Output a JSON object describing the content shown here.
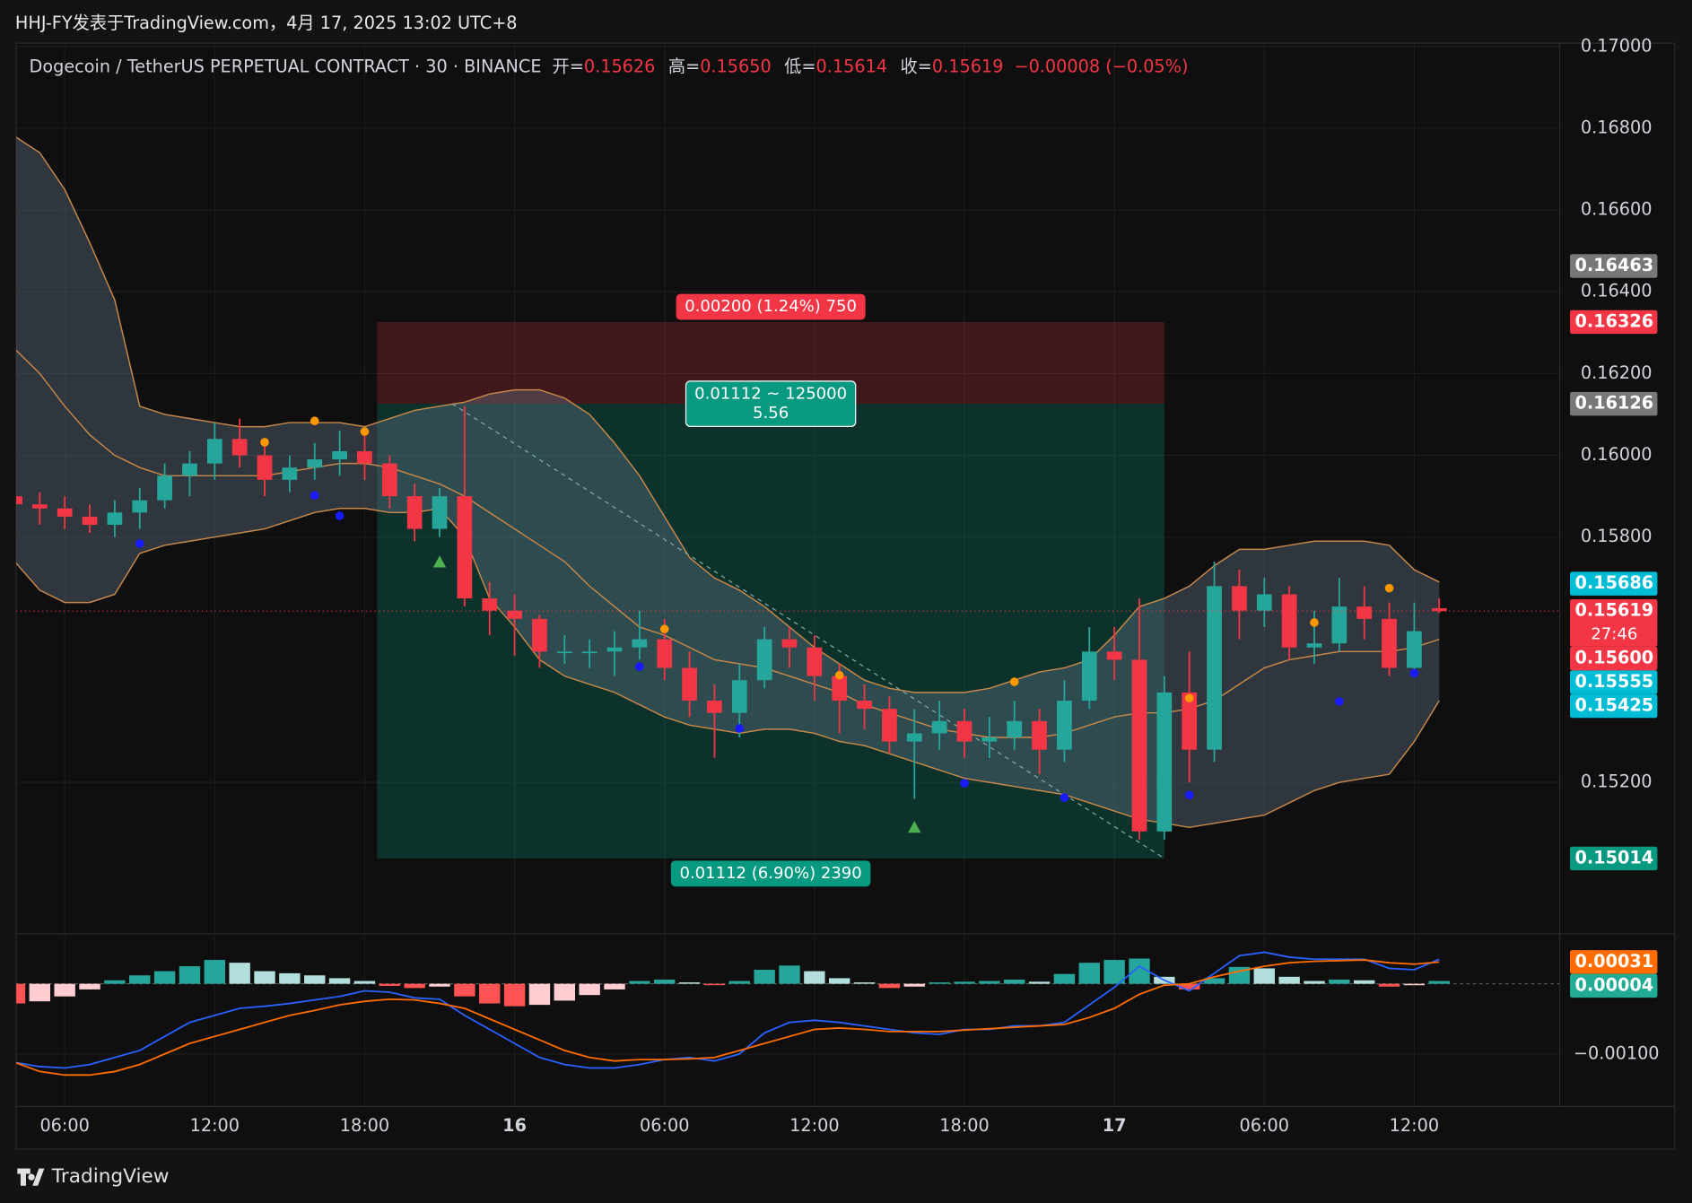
{
  "header": {
    "title": "HHJ-FY发表于TradingView.com，4月 17, 2025 13:02 UTC+8"
  },
  "footer": {
    "brand": "TradingView"
  },
  "chart_data": {
    "type": "candlestick",
    "legend": {
      "symbol": "Dogecoin / TetherUS PERPETUAL CONTRACT · 30 · BINANCE",
      "fields": [
        {
          "label": "开=",
          "value": "0.15626"
        },
        {
          "label": "高=",
          "value": "0.15650"
        },
        {
          "label": "低=",
          "value": "0.15614"
        },
        {
          "label": "收=",
          "value": "0.15619"
        }
      ],
      "change": "−0.00008 (−0.05%)"
    },
    "up_color": "#26a69a",
    "down_color": "#f23645",
    "xlim": [
      0.06,
      61.8
    ],
    "xticks": [
      {
        "value": 2,
        "label": "06:00"
      },
      {
        "value": 8,
        "label": "12:00"
      },
      {
        "value": 14,
        "label": "18:00"
      },
      {
        "value": 20,
        "label": "16"
      },
      {
        "value": 26,
        "label": "06:00"
      },
      {
        "value": 32,
        "label": "12:00"
      },
      {
        "value": 38,
        "label": "18:00"
      },
      {
        "value": 44,
        "label": "17"
      },
      {
        "value": 50,
        "label": "06:00"
      },
      {
        "value": 56,
        "label": "12:00"
      }
    ],
    "ylim": [
      0.14831,
      0.17008
    ],
    "yticks": [
      {
        "value": 0.17,
        "label": "0.17000"
      },
      {
        "value": 0.168,
        "label": "0.16800"
      },
      {
        "value": 0.166,
        "label": "0.16600"
      },
      {
        "value": 0.164,
        "label": "0.16400"
      },
      {
        "value": 0.162,
        "label": "0.16200"
      },
      {
        "value": 0.16,
        "label": "0.16000"
      },
      {
        "value": 0.158,
        "label": "0.15800"
      },
      {
        "value": 0.152,
        "label": "0.15200"
      }
    ],
    "grid": true,
    "candles": [
      [
        0.159,
        0.1593,
        0.1584,
        0.1588
      ],
      [
        0.1588,
        0.1591,
        0.1583,
        0.1587
      ],
      [
        0.1587,
        0.159,
        0.1582,
        0.1585
      ],
      [
        0.1585,
        0.1588,
        0.1581,
        0.1583
      ],
      [
        0.1583,
        0.1589,
        0.158,
        0.1586
      ],
      [
        0.1586,
        0.1592,
        0.1582,
        0.1589
      ],
      [
        0.1589,
        0.1598,
        0.1587,
        0.1595
      ],
      [
        0.1595,
        0.1601,
        0.159,
        0.1598
      ],
      [
        0.1598,
        0.1608,
        0.1594,
        0.1604
      ],
      [
        0.1604,
        0.1609,
        0.1597,
        0.16
      ],
      [
        0.16,
        0.1603,
        0.159,
        0.1594
      ],
      [
        0.1594,
        0.16,
        0.1591,
        0.1597
      ],
      [
        0.1597,
        0.1603,
        0.1594,
        0.1599
      ],
      [
        0.1599,
        0.1606,
        0.1595,
        0.1601
      ],
      [
        0.1601,
        0.1606,
        0.1594,
        0.1598
      ],
      [
        0.1598,
        0.16,
        0.1587,
        0.159
      ],
      [
        0.159,
        0.1593,
        0.1579,
        0.1582
      ],
      [
        0.1582,
        0.1592,
        0.158,
        0.159
      ],
      [
        0.159,
        0.1612,
        0.1563,
        0.1565
      ],
      [
        0.1565,
        0.1569,
        0.1556,
        0.1562
      ],
      [
        0.1562,
        0.1566,
        0.1551,
        0.156
      ],
      [
        0.156,
        0.1561,
        0.1548,
        0.1552
      ],
      [
        0.1552,
        0.1556,
        0.1549,
        0.1552
      ],
      [
        0.1552,
        0.1555,
        0.1548,
        0.1552
      ],
      [
        0.1552,
        0.1557,
        0.1546,
        0.1553
      ],
      [
        0.1553,
        0.1562,
        0.155,
        0.1555
      ],
      [
        0.1555,
        0.156,
        0.1545,
        0.1548
      ],
      [
        0.1548,
        0.1552,
        0.1536,
        0.154
      ],
      [
        0.154,
        0.1544,
        0.1526,
        0.1537
      ],
      [
        0.1537,
        0.1549,
        0.1531,
        0.1545
      ],
      [
        0.1545,
        0.1558,
        0.1543,
        0.1555
      ],
      [
        0.1555,
        0.1558,
        0.1548,
        0.1553
      ],
      [
        0.1553,
        0.1556,
        0.154,
        0.1546
      ],
      [
        0.1546,
        0.1549,
        0.1532,
        0.154
      ],
      [
        0.154,
        0.1544,
        0.1533,
        0.1538
      ],
      [
        0.1538,
        0.1541,
        0.1527,
        0.153
      ],
      [
        0.153,
        0.1538,
        0.1516,
        0.1532
      ],
      [
        0.1532,
        0.154,
        0.1528,
        0.1535
      ],
      [
        0.1535,
        0.1538,
        0.1526,
        0.153
      ],
      [
        0.153,
        0.1536,
        0.1526,
        0.1531
      ],
      [
        0.1531,
        0.154,
        0.1528,
        0.1535
      ],
      [
        0.1535,
        0.1538,
        0.1522,
        0.1528
      ],
      [
        0.1528,
        0.1545,
        0.1525,
        0.154
      ],
      [
        0.154,
        0.1558,
        0.1538,
        0.1552
      ],
      [
        0.1552,
        0.1558,
        0.1545,
        0.155
      ],
      [
        0.155,
        0.1565,
        0.1506,
        0.1508
      ],
      [
        0.1508,
        0.1546,
        0.1506,
        0.1542
      ],
      [
        0.1542,
        0.1552,
        0.152,
        0.1528
      ],
      [
        0.1528,
        0.1574,
        0.1525,
        0.1568
      ],
      [
        0.1568,
        0.1572,
        0.1555,
        0.1562
      ],
      [
        0.1562,
        0.157,
        0.1558,
        0.1566
      ],
      [
        0.1566,
        0.1568,
        0.155,
        0.1553
      ],
      [
        0.1553,
        0.1562,
        0.1549,
        0.1554
      ],
      [
        0.1554,
        0.157,
        0.1552,
        0.1563
      ],
      [
        0.1563,
        0.1568,
        0.1555,
        0.156
      ],
      [
        0.156,
        0.1564,
        0.1546,
        0.1548
      ],
      [
        0.1548,
        0.1564,
        0.1546,
        0.1557
      ],
      [
        0.15626,
        0.1565,
        0.15614,
        0.15619
      ]
    ],
    "bands": {
      "color": "#c8894a",
      "fill": "rgba(110,130,150,0.35)",
      "upper": [
        0.1678,
        0.1674,
        0.1665,
        0.1652,
        0.1638,
        0.1612,
        0.161,
        0.1609,
        0.1608,
        0.1607,
        0.1607,
        0.1608,
        0.1608,
        0.1608,
        0.1607,
        0.1609,
        0.1611,
        0.1612,
        0.1613,
        0.1615,
        0.1616,
        0.1616,
        0.1614,
        0.161,
        0.1603,
        0.1595,
        0.1585,
        0.1575,
        0.157,
        0.1567,
        0.1563,
        0.1558,
        0.1553,
        0.1549,
        0.1545,
        0.1543,
        0.1542,
        0.1542,
        0.1542,
        0.1543,
        0.1545,
        0.1547,
        0.1548,
        0.155,
        0.1556,
        0.1563,
        0.1565,
        0.1568,
        0.1573,
        0.1577,
        0.1577,
        0.1578,
        0.1579,
        0.1579,
        0.1579,
        0.1578,
        0.1572,
        0.1569
      ],
      "middle": [
        0.1626,
        0.162,
        0.1612,
        0.1605,
        0.16,
        0.1597,
        0.1595,
        0.1595,
        0.1595,
        0.1595,
        0.1595,
        0.1596,
        0.1597,
        0.1598,
        0.1598,
        0.1597,
        0.1595,
        0.1593,
        0.159,
        0.1586,
        0.1582,
        0.1578,
        0.1574,
        0.1568,
        0.1563,
        0.1558,
        0.1556,
        0.1553,
        0.155,
        0.1549,
        0.1548,
        0.1546,
        0.1544,
        0.1542,
        0.1539,
        0.1537,
        0.1535,
        0.1533,
        0.1532,
        0.1531,
        0.1531,
        0.1531,
        0.1532,
        0.1534,
        0.1536,
        0.1537,
        0.1537,
        0.1538,
        0.154,
        0.1544,
        0.1548,
        0.155,
        0.1551,
        0.1552,
        0.1552,
        0.1552,
        0.1553,
        0.1555
      ],
      "lower": [
        0.1574,
        0.1567,
        0.1564,
        0.1564,
        0.1566,
        0.1576,
        0.1578,
        0.1579,
        0.158,
        0.1581,
        0.1582,
        0.1584,
        0.1586,
        0.1587,
        0.1587,
        0.1586,
        0.1586,
        0.1587,
        0.158,
        0.1565,
        0.1558,
        0.155,
        0.1546,
        0.1544,
        0.1542,
        0.1539,
        0.1536,
        0.1534,
        0.1533,
        0.1532,
        0.1533,
        0.1533,
        0.1532,
        0.153,
        0.1529,
        0.1527,
        0.1525,
        0.1523,
        0.1521,
        0.152,
        0.1519,
        0.1518,
        0.1517,
        0.1515,
        0.1513,
        0.1511,
        0.151,
        0.1509,
        0.151,
        0.1511,
        0.1512,
        0.1515,
        0.1518,
        0.152,
        0.1521,
        0.1522,
        0.153,
        0.154
      ]
    },
    "markers": [
      {
        "color": "#ff9800",
        "shape": "circle",
        "points": [
          [
            10,
            0.16032
          ],
          [
            12,
            0.16084
          ],
          [
            14,
            0.16058
          ],
          [
            26,
            0.15575
          ],
          [
            33,
            0.15462
          ],
          [
            40,
            0.15446
          ],
          [
            47,
            0.15406
          ],
          [
            52,
            0.15591
          ],
          [
            55,
            0.15675
          ]
        ]
      },
      {
        "color": "#1a1aff",
        "shape": "circle",
        "points": [
          [
            5,
            0.15784
          ],
          [
            12,
            0.15902
          ],
          [
            13,
            0.15852
          ],
          [
            25,
            0.15483
          ],
          [
            29,
            0.15332
          ],
          [
            38,
            0.15198
          ],
          [
            42,
            0.15163
          ],
          [
            47,
            0.15169
          ],
          [
            53,
            0.15398
          ],
          [
            56,
            0.15467
          ]
        ]
      },
      {
        "color": "#4caf50",
        "shape": "triangle",
        "points": [
          [
            17,
            0.15739
          ],
          [
            36,
            0.1509
          ]
        ]
      }
    ],
    "badges": [
      {
        "value": 0.16463,
        "label": "0.16463",
        "color": "#787878"
      },
      {
        "value": 0.16326,
        "label": "0.16326",
        "color": "#f23645"
      },
      {
        "value": 0.16126,
        "label": "0.16126",
        "color": "#787878"
      },
      {
        "value": 0.15686,
        "label": "0.15686",
        "color": "#00bcd4"
      },
      {
        "value": 0.15619,
        "label": "0.15619",
        "color": "#f23645",
        "countdown": "27:46"
      },
      {
        "value": 0.156,
        "label": "0.15600",
        "color": "#f23645"
      },
      {
        "value": 0.15555,
        "label": "0.15555",
        "color": "#00bcd4"
      },
      {
        "value": 0.15425,
        "label": "0.15425",
        "color": "#00bcd4"
      },
      {
        "value": 0.15014,
        "label": "0.15014",
        "color": "#089981"
      }
    ],
    "position": {
      "start": 14.5,
      "end": 46,
      "stop_label": "0.00200 (1.24%) 750",
      "center_label": [
        "0.01112 ~ 125000",
        "5.56"
      ],
      "target_label": "0.01112 (6.90%) 2390"
    },
    "macd": {
      "y2lim": [
        -0.00174,
        0.00072
      ],
      "y2ticks": [
        {
          "value": -0.001,
          "label": "−0.00100"
        }
      ],
      "histogram": [
        -0.00028,
        -0.00025,
        -0.00018,
        -8e-05,
        5e-05,
        0.00012,
        0.00018,
        0.00025,
        0.00034,
        0.0003,
        0.00018,
        0.00015,
        0.00012,
        8e-05,
        4e-05,
        -3e-05,
        -6e-05,
        -4e-05,
        -0.00018,
        -0.00028,
        -0.00032,
        -0.0003,
        -0.00024,
        -0.00016,
        -8e-05,
        4e-05,
        6e-05,
        2e-05,
        -2e-05,
        4e-05,
        0.0002,
        0.00026,
        0.00018,
        8e-05,
        2e-05,
        -6e-05,
        -4e-05,
        2e-05,
        3e-05,
        4e-05,
        6e-05,
        3e-05,
        0.00014,
        0.0003,
        0.00034,
        0.00036,
        0.0001,
        -8e-05,
        8e-05,
        0.00024,
        0.00022,
        0.0001,
        4e-05,
        6e-05,
        5e-05,
        -4e-05,
        -2e-05,
        4e-05
      ],
      "macd_color": "#2962ff",
      "macd": [
        -0.00112,
        -0.00118,
        -0.0012,
        -0.00115,
        -0.00105,
        -0.00095,
        -0.00075,
        -0.00055,
        -0.00045,
        -0.00035,
        -0.00032,
        -0.00028,
        -0.00023,
        -0.00018,
        -0.0001,
        -0.00012,
        -0.0002,
        -0.00022,
        -0.00045,
        -0.00065,
        -0.00085,
        -0.00105,
        -0.00115,
        -0.0012,
        -0.0012,
        -0.00115,
        -0.00108,
        -0.00105,
        -0.0011,
        -0.001,
        -0.0007,
        -0.00055,
        -0.00052,
        -0.00055,
        -0.0006,
        -0.00065,
        -0.0007,
        -0.00072,
        -0.00065,
        -0.00065,
        -0.0006,
        -0.0006,
        -0.00055,
        -0.0003,
        -5e-05,
        0.00025,
        5e-05,
        -0.0001,
        0.00015,
        0.0004,
        0.00045,
        0.00038,
        0.00035,
        0.00035,
        0.00035,
        0.00022,
        0.0002,
        0.00035
      ],
      "signal_color": "#ff6d00",
      "signal": [
        -0.00112,
        -0.00125,
        -0.0013,
        -0.0013,
        -0.00125,
        -0.00115,
        -0.001,
        -0.00085,
        -0.00075,
        -0.00065,
        -0.00055,
        -0.00045,
        -0.00038,
        -0.0003,
        -0.00025,
        -0.00022,
        -0.00023,
        -0.00028,
        -0.00035,
        -0.0005,
        -0.00065,
        -0.0008,
        -0.00095,
        -0.00105,
        -0.0011,
        -0.00108,
        -0.00108,
        -0.00107,
        -0.00105,
        -0.00095,
        -0.00085,
        -0.00075,
        -0.00065,
        -0.00063,
        -0.00065,
        -0.00068,
        -0.00068,
        -0.00068,
        -0.00066,
        -0.00064,
        -0.00062,
        -0.0006,
        -0.00058,
        -0.00048,
        -0.00035,
        -0.00015,
        -2e-05,
        0,
        0.0001,
        0.00018,
        0.00025,
        0.0003,
        0.00032,
        0.00033,
        0.00034,
        0.0003,
        0.00028,
        0.00031
      ],
      "badges": [
        {
          "value": 0.00031,
          "label": "0.00031",
          "color": "#ff6d00"
        },
        {
          "value": 4e-05,
          "label": "0.00004",
          "color": "#22ab94"
        }
      ]
    }
  }
}
